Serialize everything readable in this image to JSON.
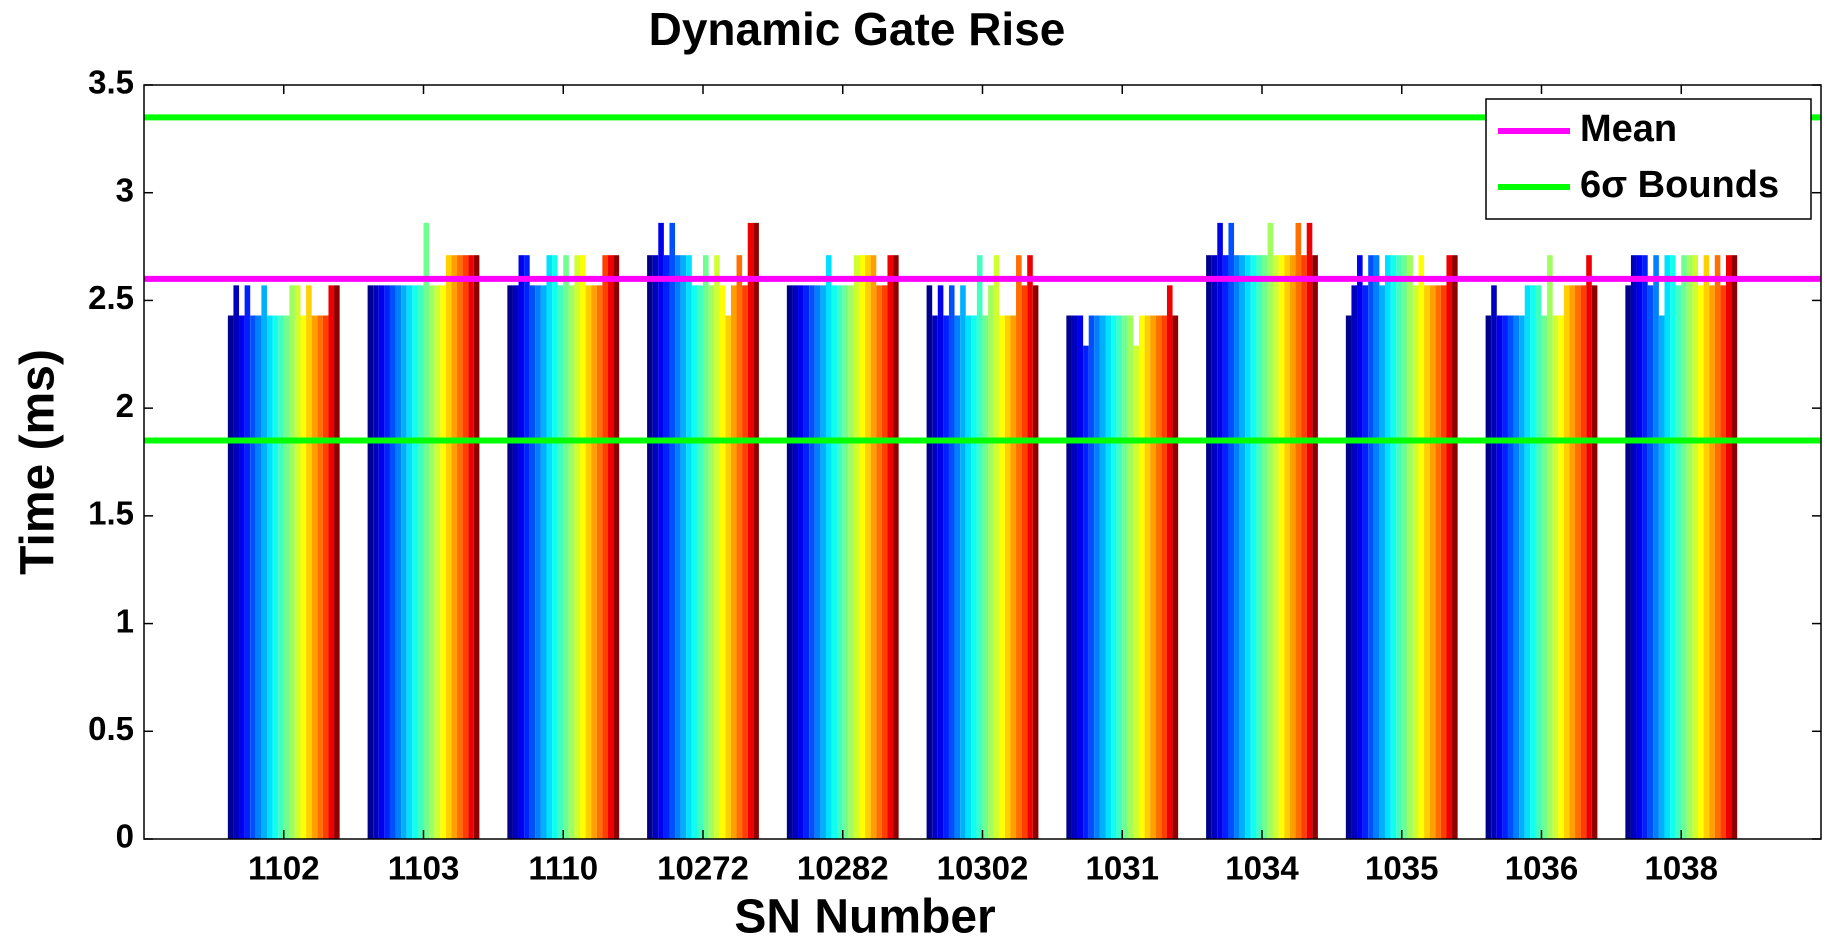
{
  "chart_data": {
    "type": "bar",
    "title": "Dynamic Gate Rise",
    "xlabel": "SN Number",
    "ylabel": "Time (ms)",
    "categories": [
      "1102",
      "1103",
      "1110",
      "10272",
      "10282",
      "10302",
      "1031",
      "1034",
      "1035",
      "1036",
      "1038"
    ],
    "series": [
      {
        "color": "#00008f",
        "values": [
          2.43,
          2.57,
          2.57,
          2.71,
          2.57,
          2.57,
          2.43,
          2.71,
          2.43,
          2.43,
          2.57
        ]
      },
      {
        "color": "#0000bf",
        "values": [
          2.57,
          2.57,
          2.57,
          2.71,
          2.57,
          2.43,
          2.43,
          2.71,
          2.57,
          2.57,
          2.71
        ]
      },
      {
        "color": "#0000ef",
        "values": [
          2.43,
          2.57,
          2.71,
          2.86,
          2.57,
          2.57,
          2.43,
          2.86,
          2.71,
          2.43,
          2.71
        ]
      },
      {
        "color": "#0020ff",
        "values": [
          2.57,
          2.57,
          2.71,
          2.71,
          2.57,
          2.43,
          2.29,
          2.71,
          2.57,
          2.43,
          2.71
        ]
      },
      {
        "color": "#0050ff",
        "values": [
          2.43,
          2.57,
          2.57,
          2.86,
          2.57,
          2.57,
          2.43,
          2.86,
          2.71,
          2.43,
          2.57
        ]
      },
      {
        "color": "#0080ff",
        "values": [
          2.43,
          2.57,
          2.57,
          2.71,
          2.57,
          2.43,
          2.43,
          2.71,
          2.71,
          2.43,
          2.71
        ]
      },
      {
        "color": "#00b0ff",
        "values": [
          2.57,
          2.57,
          2.57,
          2.71,
          2.57,
          2.57,
          2.43,
          2.71,
          2.57,
          2.43,
          2.43
        ]
      },
      {
        "color": "#00e0ff",
        "values": [
          2.43,
          2.57,
          2.71,
          2.71,
          2.71,
          2.43,
          2.43,
          2.71,
          2.71,
          2.57,
          2.71
        ]
      },
      {
        "color": "#10ffef",
        "values": [
          2.43,
          2.57,
          2.71,
          2.57,
          2.57,
          2.43,
          2.43,
          2.71,
          2.71,
          2.57,
          2.71
        ]
      },
      {
        "color": "#40ffbf",
        "values": [
          2.43,
          2.57,
          2.57,
          2.57,
          2.57,
          2.71,
          2.43,
          2.71,
          2.71,
          2.57,
          2.57
        ]
      },
      {
        "color": "#70ff8f",
        "values": [
          2.43,
          2.86,
          2.71,
          2.71,
          2.57,
          2.43,
          2.43,
          2.71,
          2.71,
          2.43,
          2.71
        ]
      },
      {
        "color": "#a0ff5f",
        "values": [
          2.57,
          2.57,
          2.57,
          2.57,
          2.57,
          2.57,
          2.43,
          2.86,
          2.71,
          2.71,
          2.71
        ]
      },
      {
        "color": "#d0ff2f",
        "values": [
          2.57,
          2.57,
          2.71,
          2.71,
          2.71,
          2.71,
          2.29,
          2.71,
          2.57,
          2.43,
          2.71
        ]
      },
      {
        "color": "#ffff00",
        "values": [
          2.43,
          2.57,
          2.71,
          2.57,
          2.71,
          2.43,
          2.43,
          2.71,
          2.71,
          2.43,
          2.57
        ]
      },
      {
        "color": "#ffcf00",
        "values": [
          2.57,
          2.71,
          2.57,
          2.43,
          2.71,
          2.43,
          2.43,
          2.71,
          2.57,
          2.57,
          2.71
        ]
      },
      {
        "color": "#ff9f00",
        "values": [
          2.43,
          2.71,
          2.57,
          2.57,
          2.71,
          2.43,
          2.43,
          2.71,
          2.57,
          2.57,
          2.57
        ]
      },
      {
        "color": "#ff6f00",
        "values": [
          2.43,
          2.71,
          2.57,
          2.71,
          2.57,
          2.71,
          2.43,
          2.86,
          2.57,
          2.57,
          2.71
        ]
      },
      {
        "color": "#ff3f00",
        "values": [
          2.43,
          2.71,
          2.71,
          2.57,
          2.57,
          2.57,
          2.43,
          2.71,
          2.57,
          2.57,
          2.57
        ]
      },
      {
        "color": "#ef0000",
        "values": [
          2.57,
          2.71,
          2.71,
          2.86,
          2.71,
          2.71,
          2.57,
          2.86,
          2.71,
          2.71,
          2.71
        ]
      },
      {
        "color": "#8f0000",
        "values": [
          2.57,
          2.71,
          2.71,
          2.86,
          2.71,
          2.57,
          2.43,
          2.71,
          2.71,
          2.57,
          2.71
        ]
      }
    ],
    "lines": [
      {
        "name": "Mean",
        "color": "#ff00ff",
        "values": [
          2.6
        ]
      },
      {
        "name": "6σ Bounds",
        "color": "#00ff00",
        "values": [
          3.35,
          1.85
        ]
      }
    ],
    "ylim": [
      0,
      3.5
    ],
    "yticks": [
      0,
      0.5,
      1,
      1.5,
      2,
      2.5,
      3,
      3.5
    ],
    "legend": "upper right"
  }
}
